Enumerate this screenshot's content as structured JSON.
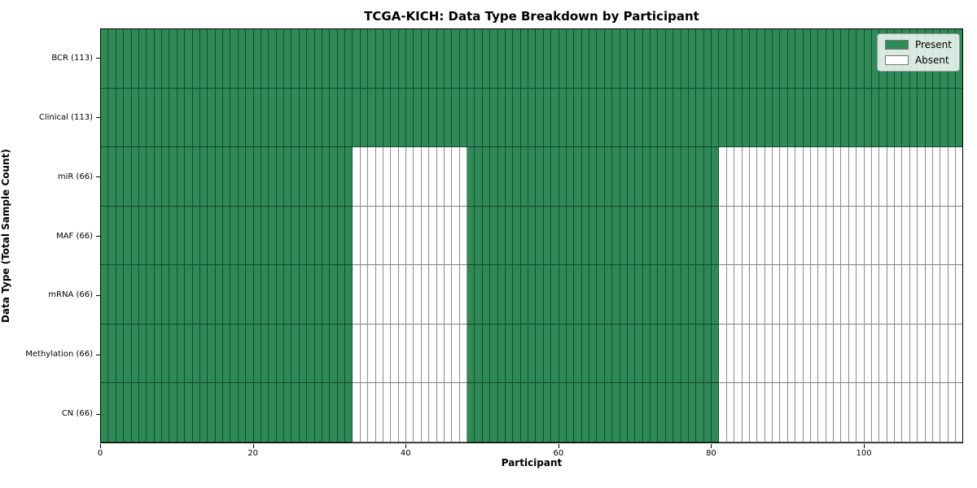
{
  "figure": {
    "title": "TCGA-KICH: Data Type Breakdown by Participant"
  },
  "axes": {
    "xlabel": "Participant",
    "ylabel": "Data Type (Total Sample Count)"
  },
  "legend": {
    "items": [
      {
        "label": "Present",
        "color": "#2e8b57"
      },
      {
        "label": "Absent",
        "color": "#ffffff"
      }
    ]
  },
  "chart_data": {
    "type": "heatmap",
    "title": "TCGA-KICH: Data Type Breakdown by Participant",
    "xlabel": "Participant",
    "ylabel": "Data Type (Total Sample Count)",
    "n_participants": 113,
    "x_ticks": [
      0,
      20,
      40,
      60,
      80,
      100
    ],
    "xlim": [
      0,
      113
    ],
    "grid": "per-cell edges",
    "legend_position": "upper right",
    "present_color": "#2e8b57",
    "absent_color": "#ffffff",
    "rows": [
      {
        "label": "BCR (113)",
        "data_type": "BCR",
        "total_samples": 113,
        "present_runs": [
          [
            0,
            113
          ]
        ],
        "absent_runs": []
      },
      {
        "label": "Clinical (113)",
        "data_type": "Clinical",
        "total_samples": 113,
        "present_runs": [
          [
            0,
            113
          ]
        ],
        "absent_runs": []
      },
      {
        "label": "miR (66)",
        "data_type": "miR",
        "total_samples": 66,
        "present_runs": [
          [
            0,
            33
          ],
          [
            48,
            81
          ]
        ],
        "absent_runs": [
          [
            33,
            48
          ],
          [
            81,
            113
          ]
        ]
      },
      {
        "label": "MAF (66)",
        "data_type": "MAF",
        "total_samples": 66,
        "present_runs": [
          [
            0,
            33
          ],
          [
            48,
            81
          ]
        ],
        "absent_runs": [
          [
            33,
            48
          ],
          [
            81,
            113
          ]
        ]
      },
      {
        "label": "mRNA (66)",
        "data_type": "mRNA",
        "total_samples": 66,
        "present_runs": [
          [
            0,
            33
          ],
          [
            48,
            81
          ]
        ],
        "absent_runs": [
          [
            33,
            48
          ],
          [
            81,
            113
          ]
        ]
      },
      {
        "label": "Methylation (66)",
        "data_type": "Methylation",
        "total_samples": 66,
        "present_runs": [
          [
            0,
            33
          ],
          [
            48,
            81
          ]
        ],
        "absent_runs": [
          [
            33,
            48
          ],
          [
            81,
            113
          ]
        ]
      },
      {
        "label": "CN (66)",
        "data_type": "CN",
        "total_samples": 66,
        "present_runs": [
          [
            0,
            33
          ],
          [
            48,
            81
          ]
        ],
        "absent_runs": [
          [
            33,
            48
          ],
          [
            81,
            113
          ]
        ]
      }
    ]
  }
}
